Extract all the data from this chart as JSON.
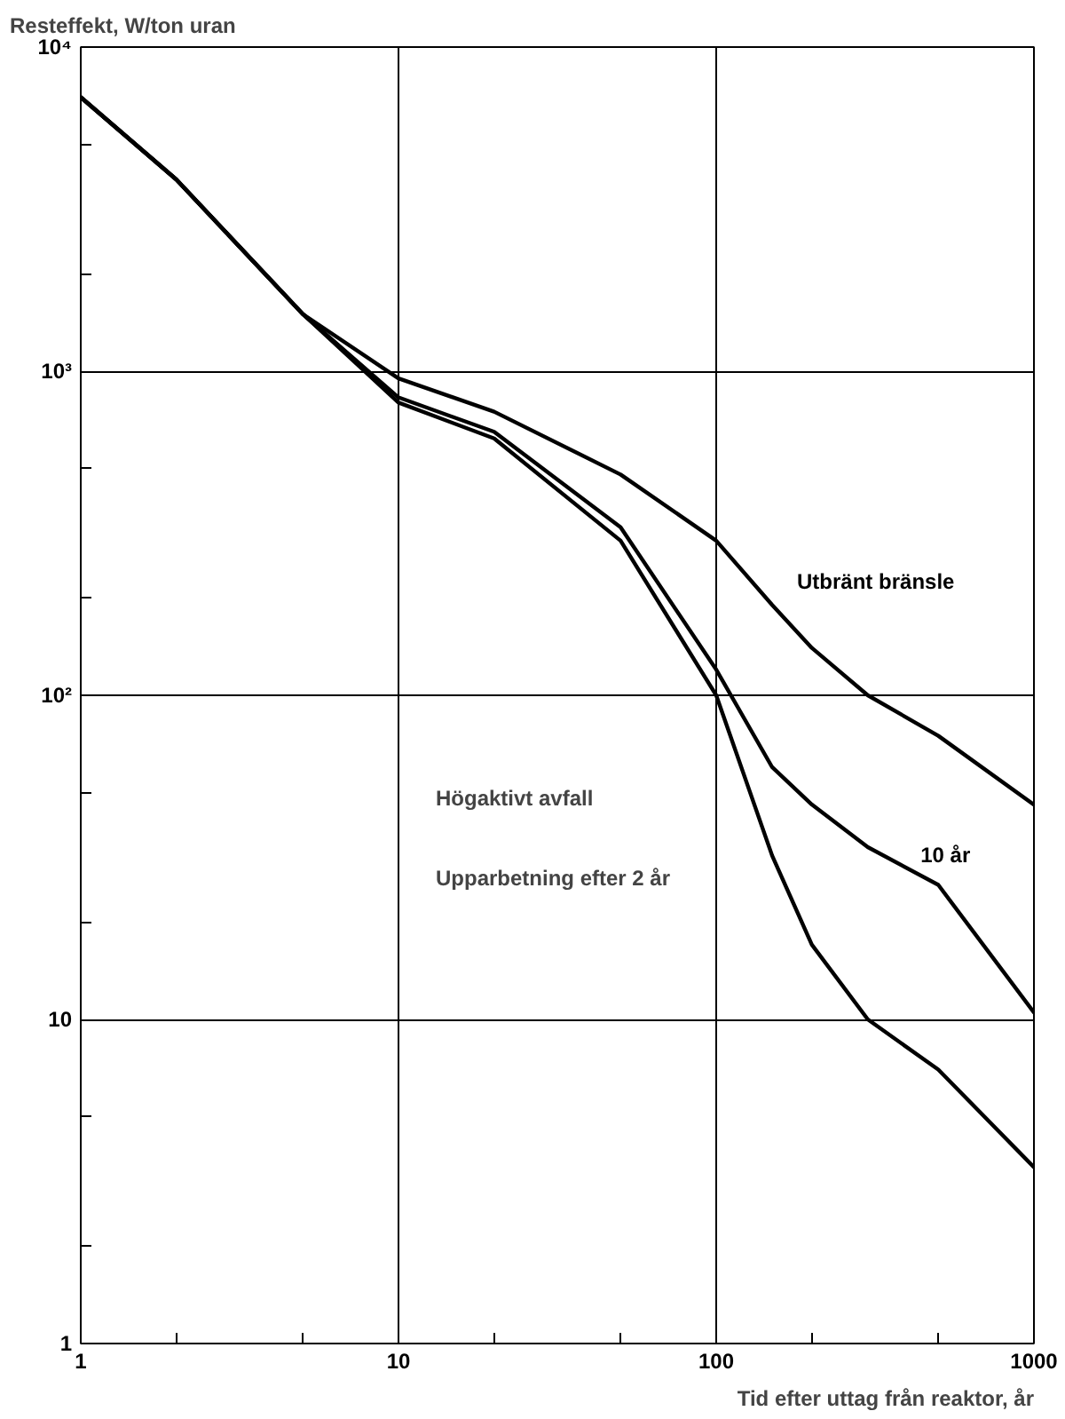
{
  "chart_data": {
    "type": "line",
    "ylabel": "Resteffekt, W/ton uran",
    "xlabel": "Tid efter uttag från reaktor, år",
    "log": "xy",
    "grid": true,
    "legend": false,
    "marker": "none",
    "line_style": "solid",
    "xlim": [
      1,
      1000
    ],
    "ylim": [
      1,
      10000
    ],
    "xticks": [
      1,
      {
        "value": 2,
        "label": null
      },
      {
        "value": 5,
        "label": null
      },
      10,
      {
        "value": 20,
        "label": null
      },
      {
        "value": 50,
        "label": null
      },
      100,
      {
        "value": 200,
        "label": null
      },
      {
        "value": 500,
        "label": null
      },
      1000
    ],
    "yticks": [
      1,
      {
        "value": 2,
        "label": null
      },
      {
        "value": 5,
        "label": null
      },
      10,
      {
        "value": 20,
        "label": null
      },
      {
        "value": 50,
        "label": null
      },
      {
        "value": 100,
        "label": "10²"
      },
      {
        "value": 200,
        "label": null
      },
      {
        "value": 500,
        "label": null
      },
      {
        "value": 1000,
        "label": "10³"
      },
      {
        "value": 2000,
        "label": null
      },
      {
        "value": 5000,
        "label": null
      },
      {
        "value": 10000,
        "label": "10⁴"
      }
    ],
    "x": [
      1,
      2,
      5,
      10,
      20,
      50,
      100,
      150,
      200,
      300,
      500,
      1000
    ],
    "series": [
      {
        "name": "Utbränt bränsle",
        "color": "#000000",
        "values": [
          7000,
          3900,
          1500,
          950,
          750,
          480,
          300,
          190,
          140,
          100,
          75,
          46
        ]
      },
      {
        "name": "10 år",
        "color": "#000000",
        "values": [
          7000,
          3900,
          1500,
          830,
          650,
          330,
          120,
          60,
          46,
          34,
          26,
          10.5
        ]
      },
      {
        "color": "#000000",
        "values": [
          7000,
          3900,
          1500,
          800,
          620,
          300,
          100,
          32,
          17,
          10,
          7,
          3.5
        ]
      }
    ],
    "annotations": [
      "Högaktivt avfall",
      "Upparbetning efter 2 år"
    ]
  }
}
